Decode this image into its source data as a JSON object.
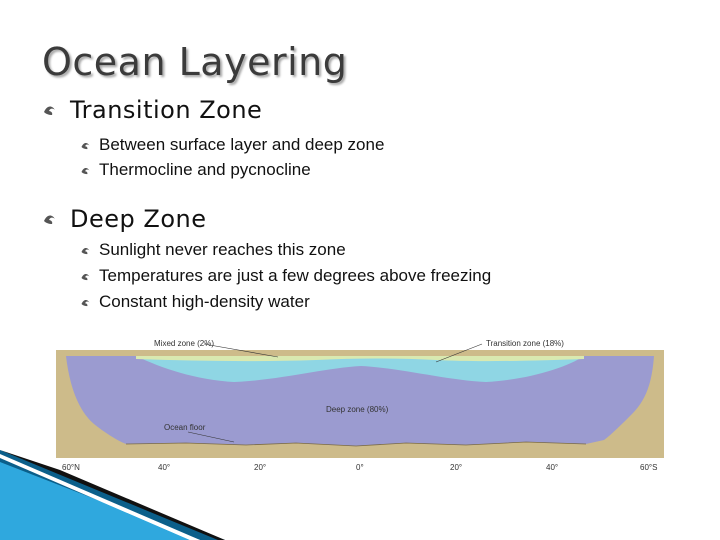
{
  "slide": {
    "title": "Ocean Layering",
    "sections": [
      {
        "heading": "Transition Zone",
        "bullets": [
          "Between surface layer and deep zone",
          "Thermocline and pycnocline"
        ]
      },
      {
        "heading": "Deep Zone",
        "bullets": [
          "Sunlight never reaches this zone",
          "Temperatures are just a few degrees above freezing",
          "Constant high-density water"
        ]
      }
    ]
  },
  "diagram": {
    "labels": {
      "mixed_zone": "Mixed zone (2%)",
      "transition_zone": "Transition zone (18%)",
      "deep_zone": "Deep zone (80%)",
      "ocean_floor": "Ocean floor"
    },
    "latitude_ticks": [
      "60°N",
      "40°",
      "20°",
      "0°",
      "20°",
      "40°",
      "60°S"
    ],
    "colors": {
      "mixed": "#d9e9b0",
      "transition": "#8fd6e4",
      "deep": "#9b9bd0",
      "land": "#cdbb8a",
      "accent": "#1a9ad6"
    }
  }
}
